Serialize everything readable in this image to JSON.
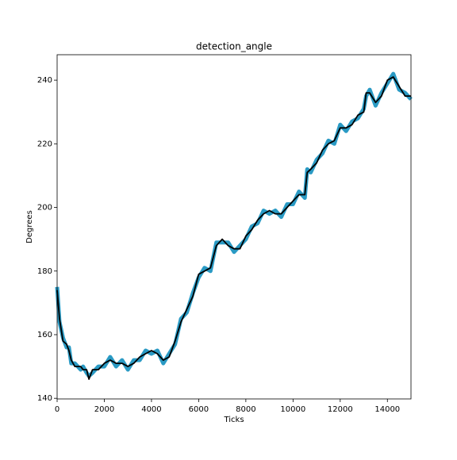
{
  "chart_data": {
    "type": "line",
    "title": "detection_angle",
    "x_label": "Ticks",
    "y_label": "Degrees",
    "x": [
      0,
      100,
      250,
      400,
      500,
      600,
      750,
      1000,
      1100,
      1250,
      1350,
      1500,
      1750,
      2000,
      2250,
      2500,
      2750,
      3000,
      3250,
      3500,
      3750,
      4000,
      4250,
      4500,
      4750,
      5000,
      5250,
      5500,
      5750,
      6000,
      6250,
      6500,
      6750,
      7000,
      7250,
      7500,
      7750,
      8000,
      8250,
      8500,
      8750,
      9000,
      9250,
      9500,
      9750,
      10000,
      10250,
      10500,
      10600,
      10750,
      11000,
      11250,
      11500,
      11750,
      12000,
      12250,
      12500,
      12750,
      13000,
      13100,
      13250,
      13500,
      13750,
      14000,
      14250,
      14500,
      14750,
      15000
    ],
    "series": [
      {
        "color": "#2a9ac4",
        "values": [
          175,
          164,
          159,
          156,
          156,
          151,
          151,
          149,
          150,
          148,
          147,
          148,
          150,
          150,
          153,
          150,
          152,
          149,
          152,
          152,
          155,
          154,
          155,
          151,
          154,
          157,
          165,
          167,
          173,
          178,
          181,
          180,
          189,
          189,
          189,
          186,
          188,
          190,
          194,
          195,
          199,
          198,
          199,
          197,
          201,
          201,
          205,
          203,
          212,
          211,
          215,
          217,
          221,
          220,
          226,
          224,
          227,
          228,
          231,
          235,
          237,
          232,
          236,
          239,
          242,
          237,
          236,
          234
        ]
      },
      {
        "color": "#000000",
        "values": [
          174,
          165,
          158,
          157,
          155,
          152,
          150,
          150,
          149,
          149,
          146,
          149,
          149,
          151,
          152,
          151,
          151,
          150,
          151,
          153,
          154,
          155,
          154,
          152,
          153,
          158,
          164,
          168,
          172,
          179,
          180,
          181,
          188,
          190,
          188,
          187,
          187,
          191,
          193,
          196,
          198,
          199,
          198,
          198,
          200,
          202,
          204,
          204,
          211,
          212,
          214,
          218,
          220,
          221,
          225,
          225,
          226,
          229,
          230,
          236,
          236,
          233,
          235,
          240,
          241,
          238,
          235,
          235
        ]
      }
    ],
    "xlim": [
      0,
      15000
    ],
    "ylim": [
      139.8,
      248
    ],
    "xticks": [
      0,
      2000,
      4000,
      6000,
      8000,
      10000,
      12000,
      14000
    ],
    "yticks": [
      140,
      160,
      180,
      200,
      220,
      240
    ]
  }
}
